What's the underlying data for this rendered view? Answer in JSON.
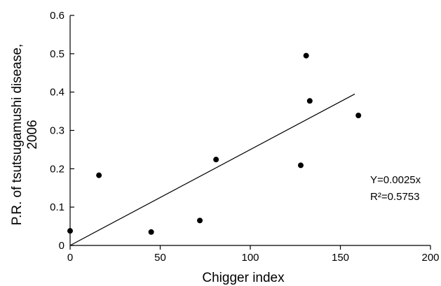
{
  "chart_data": {
    "type": "scatter",
    "xlabel": "Chigger index",
    "ylabel_lines": [
      "P.R. of tsutsugamushi disease,",
      "2006"
    ],
    "xlim": [
      0,
      200
    ],
    "ylim": [
      0,
      0.6
    ],
    "x_ticks": [
      {
        "value": 0,
        "label": "0"
      },
      {
        "value": 50,
        "label": "50"
      },
      {
        "value": 100,
        "label": "100"
      },
      {
        "value": 150,
        "label": "150"
      },
      {
        "value": 200,
        "label": "200"
      }
    ],
    "y_ticks": [
      {
        "value": 0,
        "label": "0"
      },
      {
        "value": 0.1,
        "label": "0.1"
      },
      {
        "value": 0.2,
        "label": "0.2"
      },
      {
        "value": 0.3,
        "label": "0.3"
      },
      {
        "value": 0.4,
        "label": "0.4"
      },
      {
        "value": 0.5,
        "label": "0.5"
      },
      {
        "value": 0.6,
        "label": "0.6"
      }
    ],
    "points": [
      {
        "x": 0,
        "y": 0.038
      },
      {
        "x": 16,
        "y": 0.183
      },
      {
        "x": 45,
        "y": 0.035
      },
      {
        "x": 72,
        "y": 0.065
      },
      {
        "x": 81,
        "y": 0.224
      },
      {
        "x": 128,
        "y": 0.209
      },
      {
        "x": 131,
        "y": 0.495
      },
      {
        "x": 133,
        "y": 0.377
      },
      {
        "x": 160,
        "y": 0.339
      }
    ],
    "trendline": {
      "slope": 0.0025,
      "intercept": 0,
      "x_start": 0,
      "x_end": 158
    },
    "annotations": [
      "Y=0.0025x",
      "R²=0.5753"
    ],
    "grid": false,
    "legend": "none"
  }
}
